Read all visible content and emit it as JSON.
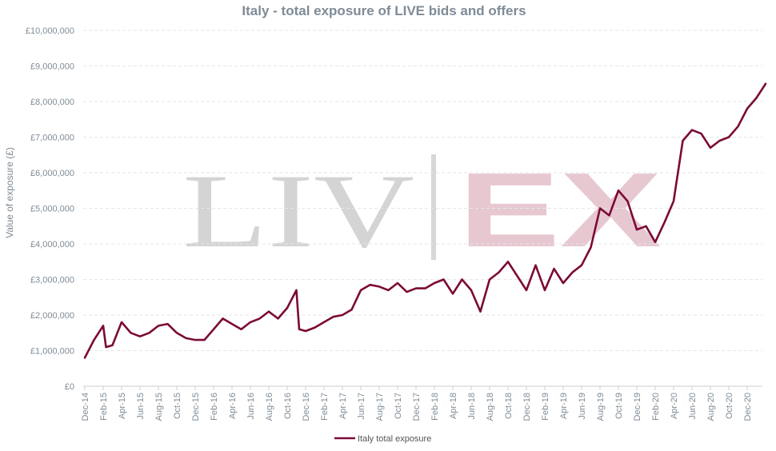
{
  "chart_data": {
    "type": "line",
    "title": "Italy - total exposure of LIVE bids and offers",
    "ylabel": "Value of exposure (£)",
    "xlabel": "",
    "ylim": [
      0,
      10000000
    ],
    "y_ticks": [
      "£0",
      "£1,000,000",
      "£2,000,000",
      "£3,000,000",
      "£4,000,000",
      "£5,000,000",
      "£6,000,000",
      "£7,000,000",
      "£8,000,000",
      "£9,000,000",
      "£10,000,000"
    ],
    "x_ticks": [
      "Dec-14",
      "Feb-15",
      "Apr-15",
      "Jun-15",
      "Aug-15",
      "Oct-15",
      "Dec-15",
      "Feb-16",
      "Apr-16",
      "Jun-16",
      "Aug-16",
      "Oct-16",
      "Dec-16",
      "Feb-17",
      "Apr-17",
      "Jun-17",
      "Aug-17",
      "Oct-17",
      "Dec-17",
      "Feb-18",
      "Apr-18",
      "Jun-18",
      "Aug-18",
      "Oct-18",
      "Dec-18",
      "Feb-19",
      "Apr-19",
      "Jun-19",
      "Aug-19",
      "Oct-19",
      "Dec-19",
      "Feb-20",
      "Apr-20",
      "Jun-20",
      "Aug-20",
      "Oct-20",
      "Dec-20"
    ],
    "grid": true,
    "legend_position": "bottom-center",
    "watermark": "LIV-EX",
    "series": [
      {
        "name": "Italy total exposure",
        "color": "#7b0a36",
        "points": [
          [
            "Dec-14",
            800000
          ],
          [
            "Jan-15",
            1300000
          ],
          [
            "Feb-15",
            1700000
          ],
          [
            "Feb-15",
            1100000
          ],
          [
            "Mar-15",
            1150000
          ],
          [
            "Apr-15",
            1800000
          ],
          [
            "May-15",
            1500000
          ],
          [
            "Jun-15",
            1400000
          ],
          [
            "Jul-15",
            1500000
          ],
          [
            "Aug-15",
            1700000
          ],
          [
            "Sep-15",
            1750000
          ],
          [
            "Oct-15",
            1500000
          ],
          [
            "Nov-15",
            1350000
          ],
          [
            "Dec-15",
            1300000
          ],
          [
            "Jan-16",
            1300000
          ],
          [
            "Feb-16",
            1600000
          ],
          [
            "Mar-16",
            1900000
          ],
          [
            "Apr-16",
            1750000
          ],
          [
            "May-16",
            1600000
          ],
          [
            "Jun-16",
            1800000
          ],
          [
            "Jul-16",
            1900000
          ],
          [
            "Aug-16",
            2100000
          ],
          [
            "Sep-16",
            1900000
          ],
          [
            "Oct-16",
            2200000
          ],
          [
            "Nov-16",
            2700000
          ],
          [
            "Nov-16",
            1600000
          ],
          [
            "Dec-16",
            1550000
          ],
          [
            "Jan-17",
            1650000
          ],
          [
            "Feb-17",
            1800000
          ],
          [
            "Mar-17",
            1950000
          ],
          [
            "Apr-17",
            2000000
          ],
          [
            "May-17",
            2150000
          ],
          [
            "Jun-17",
            2700000
          ],
          [
            "Jul-17",
            2850000
          ],
          [
            "Aug-17",
            2800000
          ],
          [
            "Sep-17",
            2700000
          ],
          [
            "Oct-17",
            2900000
          ],
          [
            "Nov-17",
            2650000
          ],
          [
            "Dec-17",
            2750000
          ],
          [
            "Jan-18",
            2750000
          ],
          [
            "Feb-18",
            2900000
          ],
          [
            "Mar-18",
            3000000
          ],
          [
            "Apr-18",
            2600000
          ],
          [
            "May-18",
            3000000
          ],
          [
            "Jun-18",
            2700000
          ],
          [
            "Jul-18",
            2100000
          ],
          [
            "Aug-18",
            3000000
          ],
          [
            "Sep-18",
            3200000
          ],
          [
            "Oct-18",
            3500000
          ],
          [
            "Nov-18",
            3100000
          ],
          [
            "Dec-18",
            2700000
          ],
          [
            "Jan-19",
            3400000
          ],
          [
            "Feb-19",
            2700000
          ],
          [
            "Mar-19",
            3300000
          ],
          [
            "Apr-19",
            2900000
          ],
          [
            "May-19",
            3200000
          ],
          [
            "Jun-19",
            3400000
          ],
          [
            "Jul-19",
            3900000
          ],
          [
            "Aug-19",
            5000000
          ],
          [
            "Sep-19",
            4800000
          ],
          [
            "Oct-19",
            5500000
          ],
          [
            "Nov-19",
            5200000
          ],
          [
            "Dec-19",
            4400000
          ],
          [
            "Jan-20",
            4500000
          ],
          [
            "Feb-20",
            4050000
          ],
          [
            "Mar-20",
            4600000
          ],
          [
            "Apr-20",
            5200000
          ],
          [
            "May-20",
            6900000
          ],
          [
            "Jun-20",
            7200000
          ],
          [
            "Jul-20",
            7100000
          ],
          [
            "Aug-20",
            6700000
          ],
          [
            "Sep-20",
            6900000
          ],
          [
            "Oct-20",
            7000000
          ],
          [
            "Nov-20",
            7300000
          ],
          [
            "Dec-20",
            7800000
          ],
          [
            "Jan-21",
            8100000
          ],
          [
            "Feb-21",
            8500000
          ]
        ]
      }
    ]
  }
}
